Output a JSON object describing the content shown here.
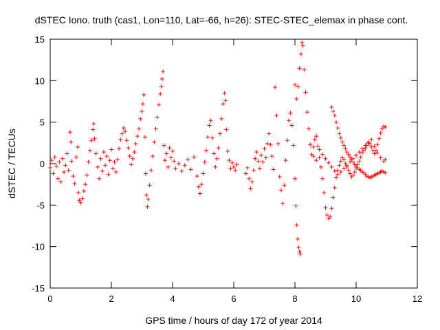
{
  "chart_data": {
    "type": "scatter",
    "title": "dSTEC Iono. truth (cas1, Lon=110, Lat=-66, h=26): STEC-STEC_elemax in phase cont.",
    "xlabel": "GPS time / hours of day 172 of year 2014",
    "ylabel": "dSTEC  / TECUs",
    "xlim": [
      0,
      12
    ],
    "ylim": [
      -15,
      15
    ],
    "xticks": [
      "0",
      "2",
      "4",
      "6",
      "8",
      "10",
      "12"
    ],
    "yticks": [
      "15",
      "10",
      "5",
      "0",
      "-5",
      "-10",
      "-15"
    ],
    "grid": false,
    "legend": "none",
    "marker": "plus",
    "series_color": "#ff0000",
    "series": [
      {
        "points": [
          [
            0.0,
            -0.5
          ],
          [
            0.05,
            0.4
          ],
          [
            0.1,
            -1.2
          ],
          [
            0.15,
            0.8
          ],
          [
            0.2,
            -0.3
          ],
          [
            0.25,
            -1.8
          ],
          [
            0.3,
            0.2
          ],
          [
            0.35,
            -2.2
          ],
          [
            0.4,
            0.6
          ],
          [
            0.45,
            -1.0
          ],
          [
            0.5,
            -0.2
          ],
          [
            0.55,
            1.2
          ],
          [
            0.6,
            -0.8
          ],
          [
            0.65,
            3.8
          ],
          [
            0.68,
            2.6
          ],
          [
            0.7,
            0.3
          ],
          [
            0.75,
            -1.5
          ],
          [
            0.8,
            -2.4
          ],
          [
            0.85,
            0.8
          ],
          [
            0.9,
            2.0
          ],
          [
            0.92,
            -3.5
          ],
          [
            0.95,
            -4.4
          ],
          [
            1.0,
            -4.7
          ],
          [
            1.05,
            -4.2
          ],
          [
            1.1,
            -3.3
          ],
          [
            1.15,
            -2.5
          ],
          [
            1.2,
            -1.4
          ],
          [
            1.25,
            0.2
          ],
          [
            1.3,
            1.6
          ],
          [
            1.35,
            2.8
          ],
          [
            1.4,
            4.1
          ],
          [
            1.42,
            4.8
          ],
          [
            1.45,
            3.0
          ],
          [
            1.5,
            1.2
          ],
          [
            1.55,
            -0.4
          ],
          [
            1.6,
            -1.8
          ],
          [
            1.65,
            0.6
          ],
          [
            1.7,
            -0.9
          ],
          [
            1.75,
            1.4
          ],
          [
            1.8,
            -0.2
          ],
          [
            1.85,
            0.9
          ],
          [
            1.9,
            -1.3
          ],
          [
            1.95,
            0.4
          ],
          [
            2.0,
            1.7
          ],
          [
            2.05,
            -0.6
          ],
          [
            2.1,
            0.2
          ],
          [
            2.15,
            -1.0
          ],
          [
            2.2,
            0.5
          ],
          [
            2.25,
            1.8
          ],
          [
            2.3,
            2.9
          ],
          [
            2.35,
            3.6
          ],
          [
            2.4,
            4.3
          ],
          [
            2.45,
            3.9
          ],
          [
            2.5,
            2.8
          ],
          [
            2.55,
            1.9
          ],
          [
            2.6,
            0.9
          ],
          [
            2.65,
            -0.1
          ],
          [
            2.7,
            0.6
          ],
          [
            2.75,
            1.4
          ],
          [
            2.8,
            2.4
          ],
          [
            2.85,
            3.3
          ],
          [
            2.9,
            4.2
          ],
          [
            2.95,
            5.4
          ],
          [
            3.0,
            6.3
          ],
          [
            3.03,
            7.2
          ],
          [
            3.06,
            8.3
          ],
          [
            3.1,
            3.2
          ],
          [
            3.12,
            -1.2
          ],
          [
            3.15,
            -3.8
          ],
          [
            3.18,
            -5.2
          ],
          [
            3.2,
            -4.3
          ],
          [
            3.25,
            -2.6
          ],
          [
            3.3,
            -0.8
          ],
          [
            3.35,
            0.9
          ],
          [
            3.4,
            2.6
          ],
          [
            3.45,
            4.2
          ],
          [
            3.5,
            5.6
          ],
          [
            3.55,
            7.1
          ],
          [
            3.6,
            8.4
          ],
          [
            3.63,
            9.3
          ],
          [
            3.66,
            10.2
          ],
          [
            3.69,
            11.1
          ],
          [
            3.72,
            2.2
          ],
          [
            3.75,
            0.4
          ],
          [
            3.8,
            1.2
          ],
          [
            3.85,
            -0.4
          ],
          [
            3.9,
            1.9
          ],
          [
            3.95,
            0.7
          ],
          [
            4.0,
            1.5
          ],
          [
            4.05,
            0.3
          ],
          [
            4.1,
            -0.6
          ],
          [
            4.2,
            0.0
          ],
          [
            4.3,
            -0.9
          ],
          [
            4.4,
            -0.2
          ],
          [
            4.5,
            0.5
          ],
          [
            4.6,
            -0.7
          ],
          [
            4.7,
            0.8
          ],
          [
            4.8,
            -1.5
          ],
          [
            4.85,
            -2.8
          ],
          [
            4.9,
            -3.6
          ],
          [
            4.95,
            -2.5
          ],
          [
            5.0,
            -1.2
          ],
          [
            5.05,
            0.2
          ],
          [
            5.1,
            1.6
          ],
          [
            5.15,
            3.2
          ],
          [
            5.2,
            4.6
          ],
          [
            5.25,
            5.2
          ],
          [
            5.3,
            3.1
          ],
          [
            5.35,
            1.2
          ],
          [
            5.4,
            -0.4
          ],
          [
            5.45,
            0.6
          ],
          [
            5.5,
            1.9
          ],
          [
            5.55,
            3.6
          ],
          [
            5.6,
            5.4
          ],
          [
            5.65,
            7.2
          ],
          [
            5.7,
            8.5
          ],
          [
            5.73,
            7.6
          ],
          [
            5.76,
            4.1
          ],
          [
            5.8,
            1.5
          ],
          [
            5.85,
            0.4
          ],
          [
            5.9,
            -0.6
          ],
          [
            5.95,
            0.1
          ],
          [
            6.0,
            -0.4
          ],
          [
            6.05,
            -0.8
          ],
          [
            6.1,
            -0.1
          ],
          [
            6.4,
            -1.2
          ],
          [
            6.45,
            -0.5
          ],
          [
            6.5,
            -1.8
          ],
          [
            6.55,
            -3.0
          ],
          [
            6.6,
            -2.2
          ],
          [
            6.65,
            -0.8
          ],
          [
            6.7,
            0.6
          ],
          [
            6.75,
            1.4
          ],
          [
            6.8,
            0.3
          ],
          [
            6.85,
            -0.6
          ],
          [
            6.9,
            1.0
          ],
          [
            6.95,
            0.2
          ],
          [
            7.0,
            1.8
          ],
          [
            7.05,
            0.7
          ],
          [
            7.1,
            2.4
          ],
          [
            7.15,
            3.6
          ],
          [
            7.2,
            2.3
          ],
          [
            7.25,
            0.9
          ],
          [
            7.3,
            -0.7
          ],
          [
            7.35,
            9.2
          ],
          [
            7.4,
            5.8
          ],
          [
            7.45,
            2.4
          ],
          [
            7.5,
            -1.6
          ],
          [
            7.55,
            -3.2
          ],
          [
            7.6,
            -4.8
          ],
          [
            7.65,
            -2.6
          ],
          [
            7.7,
            0.4
          ],
          [
            7.75,
            2.8
          ],
          [
            7.8,
            5.2
          ],
          [
            7.85,
            6.1
          ],
          [
            7.9,
            4.6
          ],
          [
            7.95,
            2.2
          ],
          [
            8.0,
            -1.8
          ],
          [
            8.03,
            -5.1
          ],
          [
            8.06,
            -7.4
          ],
          [
            8.09,
            -9.1
          ],
          [
            8.12,
            -10.1
          ],
          [
            8.15,
            -10.6
          ],
          [
            8.18,
            -10.9
          ],
          [
            8.0,
            9.5
          ],
          [
            8.05,
            7.8
          ],
          [
            8.1,
            9.3
          ],
          [
            8.15,
            11.5
          ],
          [
            8.2,
            13.2
          ],
          [
            8.23,
            14.6
          ],
          [
            8.26,
            14.2
          ],
          [
            8.3,
            11.3
          ],
          [
            8.35,
            8.6
          ],
          [
            8.4,
            6.2
          ],
          [
            8.45,
            4.2
          ],
          [
            8.5,
            2.3
          ],
          [
            8.55,
            1.1
          ],
          [
            8.6,
            2.0
          ],
          [
            8.65,
            2.9
          ],
          [
            8.7,
            3.3
          ],
          [
            8.75,
            2.1
          ],
          [
            8.8,
            0.7
          ],
          [
            8.85,
            -0.4
          ],
          [
            8.9,
            -1.8
          ],
          [
            8.95,
            -3.5
          ],
          [
            9.0,
            -5.3
          ],
          [
            9.05,
            -6.2
          ],
          [
            9.1,
            -6.6
          ],
          [
            9.15,
            -6.4
          ],
          [
            9.2,
            -5.4
          ],
          [
            9.25,
            -4.1
          ],
          [
            9.3,
            -2.9
          ],
          [
            9.35,
            -1.7
          ],
          [
            9.4,
            -0.8
          ],
          [
            9.45,
            -0.2
          ],
          [
            9.5,
            0.3
          ],
          [
            9.55,
            0.7
          ],
          [
            9.6,
            0.5
          ],
          [
            9.65,
            0.0
          ],
          [
            9.7,
            -0.4
          ],
          [
            9.75,
            -0.8
          ],
          [
            9.8,
            -1.2
          ],
          [
            9.85,
            -1.6
          ],
          [
            9.9,
            -1.4
          ],
          [
            9.95,
            -1.0
          ],
          [
            10.0,
            -0.5
          ],
          [
            10.05,
            -0.1
          ],
          [
            10.1,
            0.3
          ],
          [
            10.15,
            0.8
          ],
          [
            10.2,
            1.3
          ],
          [
            10.25,
            1.6
          ],
          [
            10.3,
            1.9
          ],
          [
            10.35,
            2.2
          ],
          [
            10.4,
            2.6
          ],
          [
            10.45,
            2.4
          ],
          [
            10.5,
            2.0
          ],
          [
            10.55,
            1.6
          ],
          [
            10.6,
            1.2
          ],
          [
            10.65,
            1.6
          ],
          [
            10.7,
            2.3
          ],
          [
            10.75,
            3.0
          ],
          [
            10.8,
            3.7
          ],
          [
            10.85,
            4.2
          ],
          [
            10.9,
            4.5
          ],
          [
            10.95,
            4.4
          ],
          [
            9.2,
            6.8
          ],
          [
            9.25,
            6.3
          ],
          [
            9.3,
            5.8
          ],
          [
            9.35,
            5.0
          ],
          [
            9.4,
            4.3
          ],
          [
            9.45,
            3.6
          ],
          [
            9.5,
            3.1
          ],
          [
            9.55,
            2.6
          ],
          [
            9.6,
            2.2
          ],
          [
            9.65,
            1.8
          ],
          [
            9.7,
            1.4
          ],
          [
            9.75,
            1.1
          ],
          [
            9.8,
            0.8
          ],
          [
            9.85,
            0.5
          ],
          [
            9.9,
            0.2
          ],
          [
            9.95,
            -0.1
          ],
          [
            10.0,
            -0.3
          ],
          [
            10.05,
            -0.5
          ],
          [
            10.1,
            -0.7
          ],
          [
            10.15,
            -0.8
          ],
          [
            10.2,
            -1.0
          ],
          [
            10.25,
            -1.1
          ],
          [
            10.3,
            -1.3
          ],
          [
            10.35,
            -1.5
          ],
          [
            10.4,
            -1.6
          ],
          [
            10.45,
            -1.7
          ],
          [
            10.5,
            -1.6
          ],
          [
            10.55,
            -1.5
          ],
          [
            10.6,
            -1.4
          ],
          [
            10.65,
            -1.3
          ],
          [
            10.7,
            -1.2
          ],
          [
            10.75,
            -1.1
          ],
          [
            10.8,
            -1.0
          ],
          [
            10.85,
            -0.9
          ],
          [
            10.9,
            -1.0
          ],
          [
            10.95,
            -1.1
          ],
          [
            8.6,
            0.9
          ],
          [
            8.7,
            0.4
          ],
          [
            8.8,
            1.7
          ],
          [
            8.9,
            1.1
          ],
          [
            9.0,
            0.6
          ],
          [
            9.1,
            0.1
          ],
          [
            9.2,
            -0.4
          ],
          [
            9.3,
            -0.9
          ],
          [
            9.4,
            -1.3
          ],
          [
            9.5,
            -1.0
          ],
          [
            9.6,
            -0.6
          ],
          [
            9.7,
            -0.2
          ],
          [
            9.8,
            0.2
          ],
          [
            9.9,
            0.6
          ],
          [
            10.0,
            1.0
          ],
          [
            10.1,
            1.4
          ],
          [
            10.2,
            1.8
          ],
          [
            10.3,
            2.2
          ],
          [
            10.4,
            2.5
          ],
          [
            10.5,
            2.9
          ],
          [
            10.6,
            2.1
          ],
          [
            10.7,
            1.3
          ],
          [
            10.8,
            0.7
          ],
          [
            10.9,
            0.3
          ],
          [
            10.95,
            0.5
          ]
        ]
      }
    ]
  }
}
